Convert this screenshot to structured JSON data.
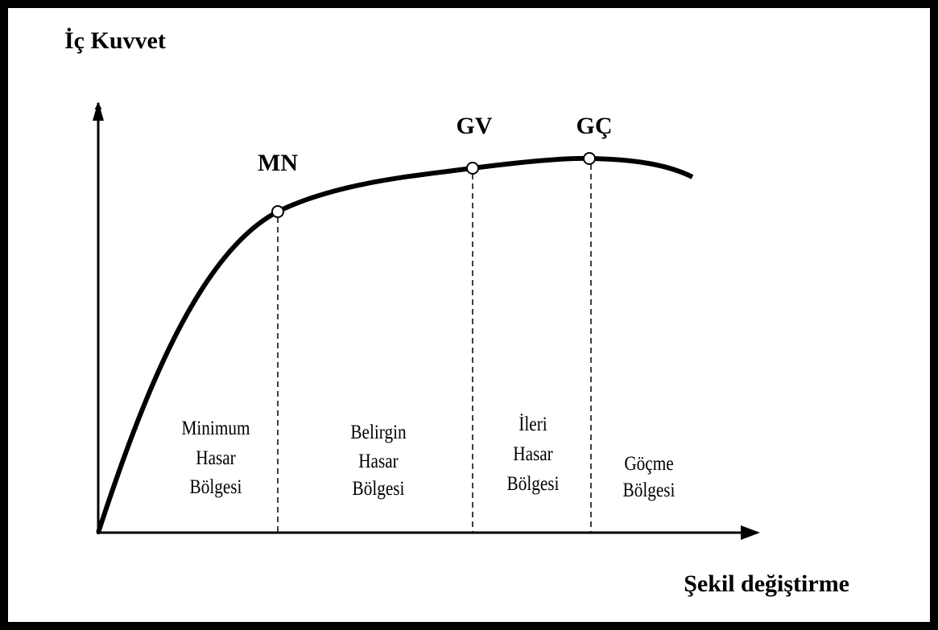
{
  "y_axis_label": "İç Kuvvet",
  "x_axis_label": "Şekil değiştirme",
  "points": [
    {
      "label": "MN"
    },
    {
      "label": "GV"
    },
    {
      "label": "GÇ"
    }
  ],
  "regions": [
    {
      "lines": [
        "Minimum",
        "Hasar",
        "Bölgesi"
      ]
    },
    {
      "lines": [
        "Belirgin",
        "Hasar",
        "Bölgesi"
      ]
    },
    {
      "lines": [
        "İleri",
        "Hasar",
        "Bölgesi"
      ]
    },
    {
      "lines": [
        "Göçme",
        "Bölgesi"
      ]
    }
  ]
}
